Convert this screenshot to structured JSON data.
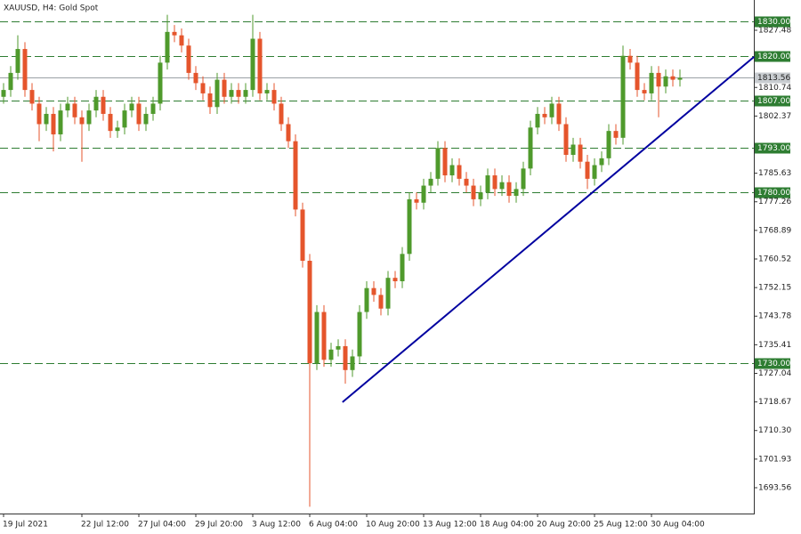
{
  "chart_data": {
    "type": "candlestick",
    "title": "XAUUSD, H4:  Gold Spot",
    "categories": [
      "19 Jul 2021",
      null,
      null,
      null,
      null,
      null,
      null,
      null,
      null,
      null,
      null,
      "22 Jul 12:00",
      null,
      null,
      null,
      null,
      null,
      null,
      null,
      "27 Jul 04:00",
      null,
      null,
      null,
      null,
      null,
      null,
      null,
      "29 Jul 20:00",
      null,
      null,
      null,
      null,
      null,
      null,
      null,
      "3 Aug 12:00",
      null,
      null,
      null,
      null,
      null,
      null,
      null,
      "6 Aug 04:00",
      null,
      null,
      null,
      null,
      null,
      null,
      null,
      "10 Aug 20:00",
      null,
      null,
      null,
      null,
      null,
      null,
      null,
      "13 Aug 12:00",
      null,
      null,
      null,
      null,
      null,
      null,
      null,
      "18 Aug 04:00",
      null,
      null,
      null,
      null,
      null,
      null,
      null,
      "20 Aug 20:00",
      null,
      null,
      null,
      null,
      null,
      null,
      null,
      "25 Aug 12:00",
      null,
      null,
      null,
      null,
      null,
      null,
      null,
      "30 Aug 04:00",
      null,
      null,
      null,
      null
    ],
    "open": [
      1808,
      1810,
      1815,
      1822,
      1810,
      1806,
      1800,
      1803,
      1797,
      1804,
      1806,
      1802,
      1800,
      1804,
      1808,
      1803,
      1798,
      1799,
      1804,
      1806,
      1800,
      1803,
      1806,
      1818,
      1827,
      1826,
      1823,
      1815,
      1812,
      1809,
      1805,
      1813,
      1808,
      1810,
      1808,
      1810,
      1825,
      1809,
      1810,
      1806,
      1800,
      1795,
      1775,
      1760,
      1730,
      1745,
      1731,
      1734,
      1735,
      1728,
      1732,
      1745,
      1752,
      1750,
      1746,
      1755,
      1754,
      1762,
      1778,
      1777,
      1782,
      1784,
      1793,
      1785,
      1788,
      1784,
      1782,
      1778,
      1780,
      1785,
      1781,
      1783,
      1779,
      1781,
      1787,
      1799,
      1803,
      1802,
      1806,
      1800,
      1791,
      1794,
      1789,
      1784,
      1788,
      1790,
      1798,
      1796,
      1820,
      1818,
      1810,
      1809,
      1815,
      1811,
      1814,
      1813
    ],
    "high": [
      1812,
      1817,
      1826,
      1824,
      1812,
      1808,
      1805,
      1805,
      1806,
      1808,
      1808,
      1804,
      1806,
      1810,
      1810,
      1805,
      1801,
      1806,
      1808,
      1808,
      1805,
      1808,
      1820,
      1832,
      1829,
      1828,
      1825,
      1817,
      1814,
      1811,
      1815,
      1815,
      1812,
      1812,
      1812,
      1832,
      1827,
      1812,
      1812,
      1808,
      1802,
      1797,
      1777,
      1762,
      1747,
      1747,
      1736,
      1737,
      1737,
      1734,
      1747,
      1754,
      1754,
      1752,
      1757,
      1757,
      1764,
      1780,
      1780,
      1784,
      1786,
      1795,
      1795,
      1790,
      1790,
      1786,
      1784,
      1782,
      1787,
      1787,
      1785,
      1785,
      1783,
      1789,
      1801,
      1805,
      1805,
      1808,
      1808,
      1802,
      1796,
      1796,
      1791,
      1790,
      1792,
      1800,
      1800,
      1823,
      1822,
      1820,
      1812,
      1817,
      1817,
      1816,
      1816,
      1816
    ],
    "low": [
      1806,
      1808,
      1813,
      1808,
      1804,
      1795,
      1798,
      1792,
      1795,
      1802,
      1800,
      1789,
      1798,
      1802,
      1801,
      1796,
      1796,
      1797,
      1802,
      1798,
      1798,
      1801,
      1804,
      1816,
      1824,
      1821,
      1813,
      1810,
      1807,
      1803,
      1803,
      1806,
      1806,
      1806,
      1806,
      1808,
      1807,
      1807,
      1804,
      1798,
      1793,
      1773,
      1758,
      1688,
      1728,
      1729,
      1729,
      1732,
      1724,
      1726,
      1730,
      1743,
      1748,
      1744,
      1744,
      1752,
      1752,
      1760,
      1775,
      1775,
      1780,
      1782,
      1783,
      1783,
      1782,
      1780,
      1776,
      1776,
      1778,
      1779,
      1779,
      1777,
      1777,
      1779,
      1785,
      1797,
      1800,
      1800,
      1798,
      1789,
      1789,
      1787,
      1781,
      1782,
      1786,
      1788,
      1794,
      1794,
      1816,
      1808,
      1807,
      1807,
      1802,
      1809,
      1811,
      1811
    ],
    "close": [
      1810,
      1815,
      1822,
      1810,
      1806,
      1800,
      1803,
      1797,
      1804,
      1806,
      1802,
      1800,
      1804,
      1808,
      1803,
      1798,
      1799,
      1804,
      1806,
      1800,
      1803,
      1806,
      1818,
      1827,
      1826,
      1823,
      1815,
      1812,
      1809,
      1805,
      1813,
      1808,
      1810,
      1808,
      1810,
      1825,
      1809,
      1810,
      1806,
      1800,
      1795,
      1775,
      1760,
      1730,
      1745,
      1731,
      1734,
      1735,
      1728,
      1732,
      1745,
      1752,
      1750,
      1746,
      1755,
      1754,
      1762,
      1778,
      1777,
      1782,
      1784,
      1793,
      1785,
      1788,
      1784,
      1782,
      1778,
      1780,
      1785,
      1781,
      1783,
      1779,
      1781,
      1787,
      1799,
      1803,
      1802,
      1806,
      1800,
      1791,
      1794,
      1789,
      1784,
      1788,
      1790,
      1798,
      1796,
      1820,
      1818,
      1810,
      1809,
      1815,
      1811,
      1814,
      1813,
      1813.56
    ],
    "up_color": "#4f9a2c",
    "down_color": "#e5552c",
    "ylim": [
      1686.0,
      1836.34
    ],
    "yticks": [
      1827.48,
      1810.74,
      1802.37,
      1785.63,
      1777.26,
      1768.89,
      1760.52,
      1752.15,
      1743.78,
      1735.41,
      1727.04,
      1718.67,
      {
        "value": 1710.3,
        "label": "1710.30"
      },
      1701.93,
      1693.56
    ],
    "levels": [
      {
        "value": 1830,
        "label": "1830.00"
      },
      {
        "value": 1820,
        "label": "1820.00"
      },
      {
        "value": 1807,
        "label": "1807.00"
      },
      {
        "value": 1793,
        "label": "1793.00"
      },
      {
        "value": 1780,
        "label": "1780.00"
      },
      {
        "value": 1730,
        "label": "1730.00"
      }
    ],
    "level_color": "#2e7d32",
    "last_price": 1813.56,
    "trendline": {
      "x": [
        47.6,
        105.4
      ],
      "y": [
        1718.6,
        1819.7
      ],
      "color": "#0000a0"
    }
  }
}
